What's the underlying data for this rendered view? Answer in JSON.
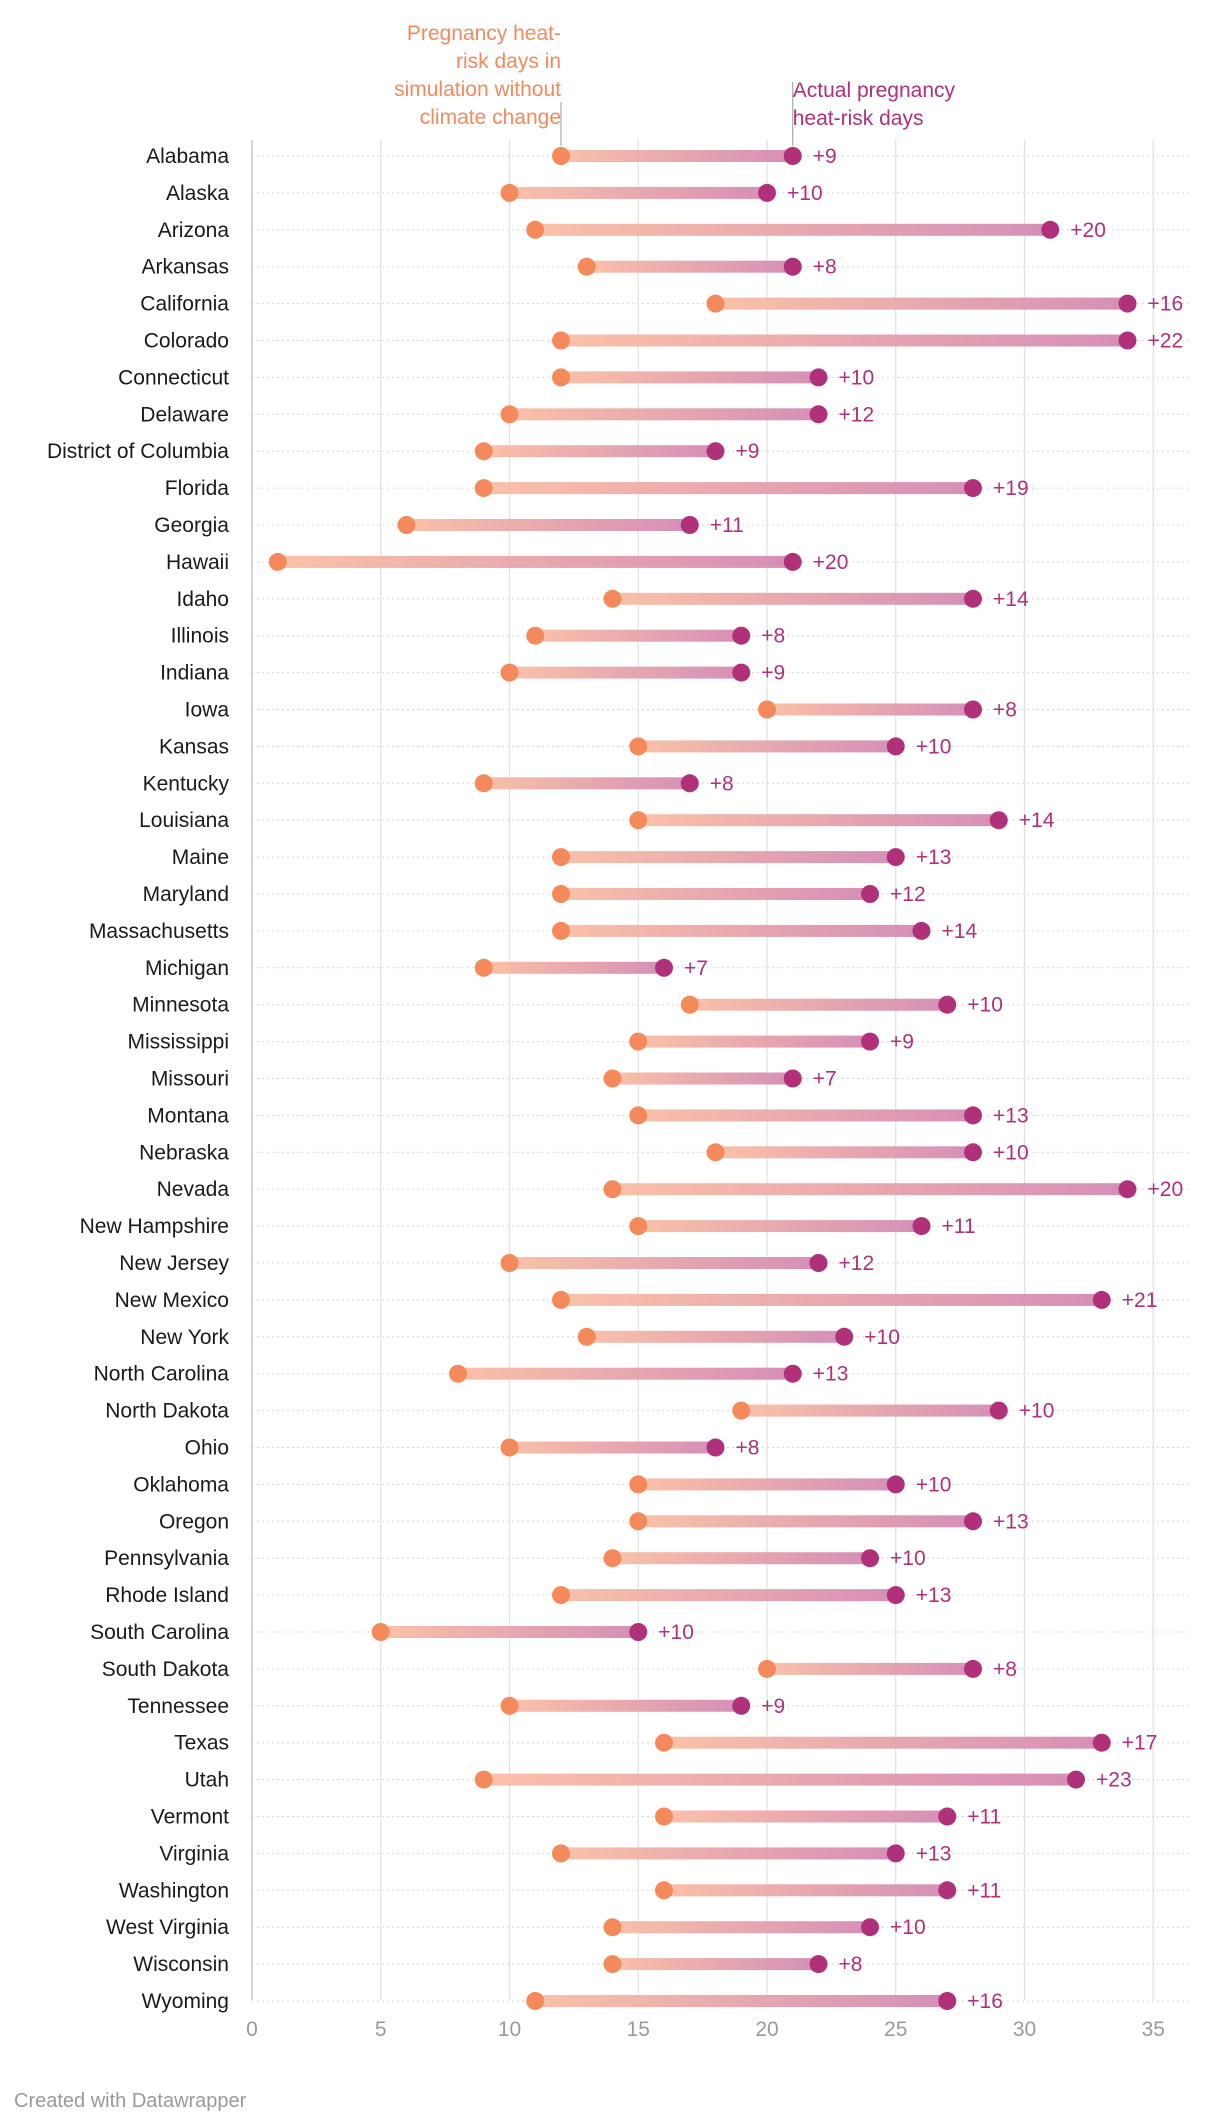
{
  "chart_data": {
    "type": "dumbbell",
    "xlim": [
      0,
      36
    ],
    "x_ticks": [
      0,
      5,
      10,
      15,
      20,
      25,
      30,
      35
    ],
    "series": [
      {
        "name": "Pregnancy heat-risk days in simulation without climate change",
        "color": "#f48a5c"
      },
      {
        "name": "Actual pregnancy heat-risk days",
        "color": "#b0307a"
      }
    ],
    "annotations": {
      "baseline_lines": [
        "Pregnancy heat-",
        "risk days in",
        "simulation without",
        "climate change"
      ],
      "actual_lines": [
        "Actual pregnancy",
        "heat-risk days"
      ]
    },
    "rows": [
      {
        "state": "Alabama",
        "baseline": 12,
        "actual": 21,
        "delta": "+9"
      },
      {
        "state": "Alaska",
        "baseline": 10,
        "actual": 20,
        "delta": "+10"
      },
      {
        "state": "Arizona",
        "baseline": 11,
        "actual": 31,
        "delta": "+20"
      },
      {
        "state": "Arkansas",
        "baseline": 13,
        "actual": 21,
        "delta": "+8"
      },
      {
        "state": "California",
        "baseline": 18,
        "actual": 34,
        "delta": "+16"
      },
      {
        "state": "Colorado",
        "baseline": 12,
        "actual": 34,
        "delta": "+22"
      },
      {
        "state": "Connecticut",
        "baseline": 12,
        "actual": 22,
        "delta": "+10"
      },
      {
        "state": "Delaware",
        "baseline": 10,
        "actual": 22,
        "delta": "+12"
      },
      {
        "state": "District of Columbia",
        "baseline": 9,
        "actual": 18,
        "delta": "+9"
      },
      {
        "state": "Florida",
        "baseline": 9,
        "actual": 28,
        "delta": "+19"
      },
      {
        "state": "Georgia",
        "baseline": 6,
        "actual": 17,
        "delta": "+11"
      },
      {
        "state": "Hawaii",
        "baseline": 1,
        "actual": 21,
        "delta": "+20"
      },
      {
        "state": "Idaho",
        "baseline": 14,
        "actual": 28,
        "delta": "+14"
      },
      {
        "state": "Illinois",
        "baseline": 11,
        "actual": 19,
        "delta": "+8"
      },
      {
        "state": "Indiana",
        "baseline": 10,
        "actual": 19,
        "delta": "+9"
      },
      {
        "state": "Iowa",
        "baseline": 20,
        "actual": 28,
        "delta": "+8"
      },
      {
        "state": "Kansas",
        "baseline": 15,
        "actual": 25,
        "delta": "+10"
      },
      {
        "state": "Kentucky",
        "baseline": 9,
        "actual": 17,
        "delta": "+8"
      },
      {
        "state": "Louisiana",
        "baseline": 15,
        "actual": 29,
        "delta": "+14"
      },
      {
        "state": "Maine",
        "baseline": 12,
        "actual": 25,
        "delta": "+13"
      },
      {
        "state": "Maryland",
        "baseline": 12,
        "actual": 24,
        "delta": "+12"
      },
      {
        "state": "Massachusetts",
        "baseline": 12,
        "actual": 26,
        "delta": "+14"
      },
      {
        "state": "Michigan",
        "baseline": 9,
        "actual": 16,
        "delta": "+7"
      },
      {
        "state": "Minnesota",
        "baseline": 17,
        "actual": 27,
        "delta": "+10"
      },
      {
        "state": "Mississippi",
        "baseline": 15,
        "actual": 24,
        "delta": "+9"
      },
      {
        "state": "Missouri",
        "baseline": 14,
        "actual": 21,
        "delta": "+7"
      },
      {
        "state": "Montana",
        "baseline": 15,
        "actual": 28,
        "delta": "+13"
      },
      {
        "state": "Nebraska",
        "baseline": 18,
        "actual": 28,
        "delta": "+10"
      },
      {
        "state": "Nevada",
        "baseline": 14,
        "actual": 34,
        "delta": "+20"
      },
      {
        "state": "New Hampshire",
        "baseline": 15,
        "actual": 26,
        "delta": "+11"
      },
      {
        "state": "New Jersey",
        "baseline": 10,
        "actual": 22,
        "delta": "+12"
      },
      {
        "state": "New Mexico",
        "baseline": 12,
        "actual": 33,
        "delta": "+21"
      },
      {
        "state": "New York",
        "baseline": 13,
        "actual": 23,
        "delta": "+10"
      },
      {
        "state": "North Carolina",
        "baseline": 8,
        "actual": 21,
        "delta": "+13"
      },
      {
        "state": "North Dakota",
        "baseline": 19,
        "actual": 29,
        "delta": "+10"
      },
      {
        "state": "Ohio",
        "baseline": 10,
        "actual": 18,
        "delta": "+8"
      },
      {
        "state": "Oklahoma",
        "baseline": 15,
        "actual": 25,
        "delta": "+10"
      },
      {
        "state": "Oregon",
        "baseline": 15,
        "actual": 28,
        "delta": "+13"
      },
      {
        "state": "Pennsylvania",
        "baseline": 14,
        "actual": 24,
        "delta": "+10"
      },
      {
        "state": "Rhode Island",
        "baseline": 12,
        "actual": 25,
        "delta": "+13"
      },
      {
        "state": "South Carolina",
        "baseline": 5,
        "actual": 15,
        "delta": "+10"
      },
      {
        "state": "South Dakota",
        "baseline": 20,
        "actual": 28,
        "delta": "+8"
      },
      {
        "state": "Tennessee",
        "baseline": 10,
        "actual": 19,
        "delta": "+9"
      },
      {
        "state": "Texas",
        "baseline": 16,
        "actual": 33,
        "delta": "+17"
      },
      {
        "state": "Utah",
        "baseline": 9,
        "actual": 32,
        "delta": "+23"
      },
      {
        "state": "Vermont",
        "baseline": 16,
        "actual": 27,
        "delta": "+11"
      },
      {
        "state": "Virginia",
        "baseline": 12,
        "actual": 25,
        "delta": "+13"
      },
      {
        "state": "Washington",
        "baseline": 16,
        "actual": 27,
        "delta": "+11"
      },
      {
        "state": "West Virginia",
        "baseline": 14,
        "actual": 24,
        "delta": "+10"
      },
      {
        "state": "Wisconsin",
        "baseline": 14,
        "actual": 22,
        "delta": "+8"
      },
      {
        "state": "Wyoming",
        "baseline": 11,
        "actual": 27,
        "delta": "+16"
      }
    ]
  },
  "footer": {
    "credit": "Created with Datawrapper"
  }
}
